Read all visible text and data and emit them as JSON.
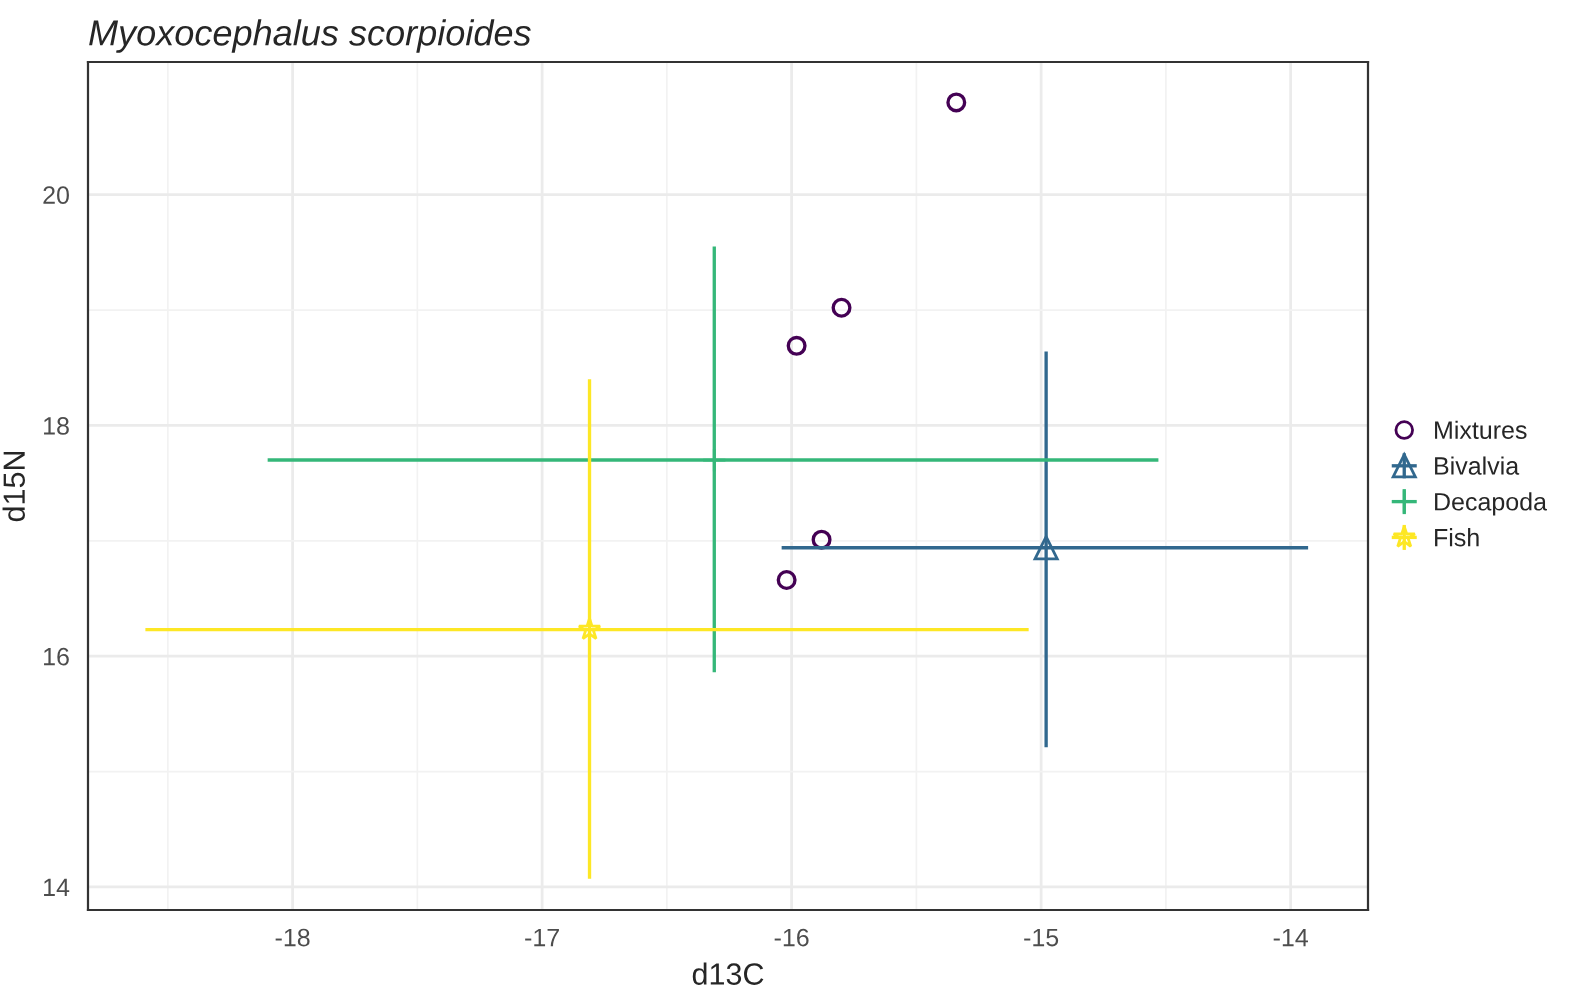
{
  "chart_data": {
    "type": "scatter",
    "title": "Myoxocephalus scorpioides",
    "xlabel": "d13C",
    "ylabel": "d15N",
    "xlim": [
      -18.82,
      -13.69
    ],
    "xticks": [
      -18,
      -17,
      -16,
      -15,
      -14
    ],
    "ylim": [
      13.8,
      21.15
    ],
    "yticks": [
      14,
      16,
      18,
      20
    ],
    "grid": true,
    "legend": "right",
    "series": [
      {
        "name": "Mixtures",
        "color": "#440154",
        "marker": "circle",
        "x": [
          -15.34,
          -15.8,
          -15.98,
          -15.88,
          -16.02
        ],
        "values": [
          20.8,
          19.02,
          18.69,
          17.01,
          16.66
        ]
      },
      {
        "name": "Bivalvia",
        "color": "#31688e",
        "marker": "triangle",
        "x": [
          -14.98
        ],
        "values": [
          16.94
        ],
        "errors": [
          [
            15.21,
            18.64
          ]
        ],
        "xerrors": [
          [
            -16.04,
            -13.93
          ]
        ]
      },
      {
        "name": "Decapoda",
        "color": "#35b779",
        "marker": "cross",
        "x": [
          -16.31
        ],
        "values": [
          17.7
        ],
        "errors": [
          [
            15.86,
            19.55
          ]
        ],
        "xerrors": [
          [
            -18.1,
            -14.53
          ]
        ]
      },
      {
        "name": "Fish",
        "color": "#fde725",
        "marker": "star",
        "x": [
          -16.81
        ],
        "values": [
          16.23
        ],
        "errors": [
          [
            14.07,
            18.4
          ]
        ],
        "xerrors": [
          [
            -18.59,
            -15.05
          ]
        ]
      }
    ]
  }
}
